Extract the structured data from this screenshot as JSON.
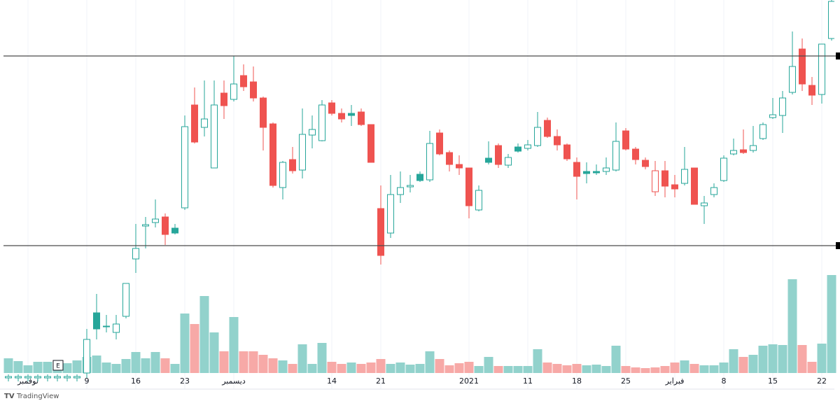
{
  "chart_data": {
    "type": "candlestick",
    "categories": [
      null,
      null,
      "نوفمبر",
      null,
      null,
      null,
      null,
      null,
      "9",
      null,
      null,
      null,
      null,
      "16",
      null,
      null,
      null,
      null,
      "23",
      null,
      null,
      null,
      null,
      "ديسمبر",
      null,
      null,
      null,
      null,
      null,
      null,
      null,
      null,
      null,
      "14",
      null,
      null,
      null,
      null,
      "21",
      null,
      null,
      null,
      null,
      null,
      null,
      null,
      null,
      "2021",
      null,
      null,
      null,
      null,
      null,
      "11",
      null,
      null,
      null,
      null,
      "18",
      null,
      null,
      null,
      null,
      "25",
      null,
      null,
      null,
      null,
      "فبراير",
      null,
      null,
      null,
      null,
      "8",
      null,
      null,
      null,
      null,
      "15",
      null,
      null,
      null,
      null,
      "22",
      null
    ],
    "open": [
      15,
      15,
      15,
      15,
      15,
      15,
      15,
      15,
      22,
      108,
      89,
      80,
      103,
      185,
      232,
      237,
      245,
      229,
      258,
      405,
      373,
      315,
      422,
      413,
      447,
      438,
      415,
      378,
      287,
      327,
      312,
      362,
      354,
      408,
      393,
      393,
      395,
      377,
      257,
      222,
      277,
      288,
      306,
      298,
      365,
      337,
      320,
      315,
      255,
      329,
      347,
      319,
      345,
      343,
      347,
      383,
      360,
      348,
      323,
      310,
      310,
      310,
      312,
      368,
      342,
      326,
      281,
      311,
      291,
      293,
      315,
      261,
      277,
      297,
      335,
      341,
      340,
      357,
      387,
      390,
      423,
      485,
      433,
      420,
      500
    ],
    "high": [
      20,
      20,
      20,
      20,
      20,
      20,
      20,
      20,
      85,
      135,
      105,
      105,
      150,
      235,
      245,
      270,
      250,
      235,
      390,
      430,
      440,
      440,
      440,
      475,
      463,
      460,
      417,
      380,
      325,
      345,
      400,
      390,
      412,
      412,
      400,
      405,
      400,
      377,
      290,
      305,
      310,
      305,
      310,
      368,
      370,
      340,
      333,
      315,
      290,
      353,
      350,
      335,
      350,
      355,
      395,
      387,
      370,
      350,
      330,
      323,
      320,
      330,
      380,
      372,
      345,
      330,
      325,
      325,
      305,
      345,
      315,
      275,
      293,
      333,
      357,
      370,
      375,
      380,
      415,
      425,
      510,
      500,
      445,
      492,
      565
    ],
    "low": [
      10,
      10,
      10,
      10,
      10,
      10,
      10,
      10,
      15,
      70,
      80,
      70,
      100,
      165,
      200,
      230,
      205,
      220,
      255,
      350,
      360,
      315,
      385,
      410,
      425,
      410,
      340,
      287,
      270,
      307,
      300,
      343,
      353,
      390,
      380,
      375,
      375,
      323,
      177,
      215,
      265,
      280,
      295,
      295,
      333,
      310,
      305,
      243,
      253,
      320,
      315,
      315,
      337,
      340,
      345,
      358,
      340,
      325,
      270,
      293,
      305,
      305,
      310,
      340,
      320,
      313,
      275,
      273,
      273,
      290,
      263,
      235,
      273,
      295,
      333,
      335,
      337,
      355,
      385,
      365,
      420,
      425,
      405,
      407,
      497
    ],
    "close": [
      17,
      17,
      17,
      17,
      17,
      17,
      17,
      17,
      70,
      85,
      88,
      92,
      150,
      200,
      234,
      242,
      220,
      222,
      374,
      352,
      385,
      405,
      404,
      435,
      431,
      415,
      373,
      290,
      323,
      311,
      363,
      370,
      405,
      393,
      385,
      390,
      377,
      323,
      190,
      277,
      287,
      290,
      297,
      350,
      335,
      320,
      315,
      261,
      283,
      323,
      320,
      330,
      339,
      348,
      373,
      360,
      348,
      328,
      303,
      307,
      308,
      315,
      353,
      342,
      327,
      317,
      311,
      289,
      285,
      313,
      263,
      265,
      287,
      329,
      340,
      337,
      347,
      377,
      391,
      415,
      460,
      435,
      419,
      492,
      553
    ],
    "volume": [
      21,
      17,
      11,
      16,
      16,
      14,
      14,
      18,
      23,
      25,
      15,
      13,
      20,
      30,
      21,
      30,
      21,
      13,
      85,
      70,
      110,
      58,
      31,
      80,
      31,
      31,
      26,
      21,
      18,
      13,
      41,
      13,
      43,
      16,
      13,
      15,
      13,
      15,
      20,
      13,
      15,
      12,
      13,
      31,
      20,
      11,
      14,
      16,
      10,
      23,
      10,
      10,
      10,
      10,
      34,
      15,
      13,
      11,
      13,
      11,
      12,
      10,
      39,
      10,
      8,
      7,
      8,
      10,
      15,
      18,
      13,
      11,
      11,
      15,
      34,
      23,
      26,
      39,
      41,
      40,
      134,
      40,
      16,
      42,
      140
    ],
    "ylim": [
      0,
      555
    ],
    "volume_ylim": [
      0,
      533
    ],
    "levels": [
      475,
      204
    ],
    "up_color": "#26a69a",
    "down_color": "#ef5350",
    "volume_up_color": "#92d2cc",
    "volume_down_color": "#f7a9a7",
    "level_color": "#4a4a4a",
    "event": "E",
    "watermark": "TradingView"
  }
}
